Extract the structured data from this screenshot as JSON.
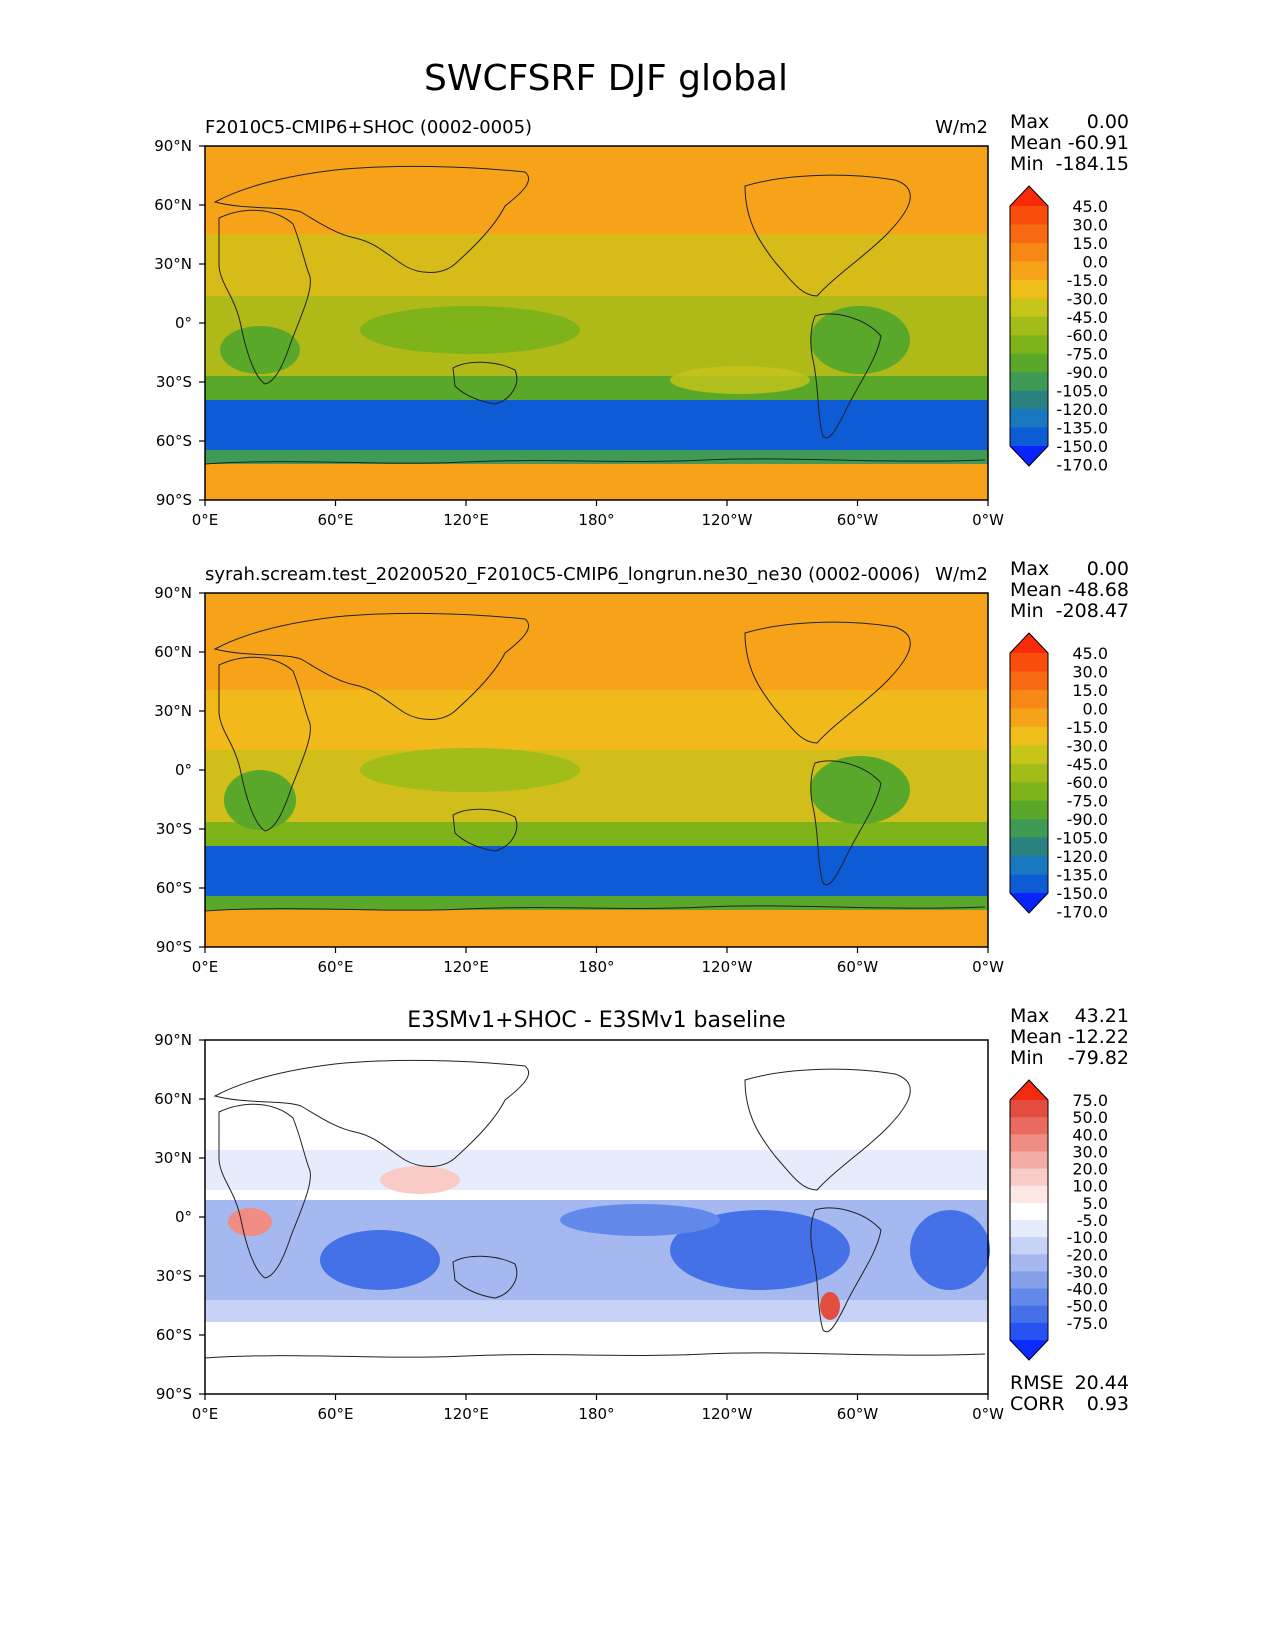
{
  "figure": {
    "title": "SWCFSRF DJF global"
  },
  "colors": {
    "model_levels_colors": [
      "#0a24ff",
      "#0d5cd6",
      "#1778bf",
      "#2b8080",
      "#3f9a54",
      "#5aa829",
      "#7fb31a",
      "#a2bd17",
      "#c7c41a",
      "#efbe1a",
      "#f7a31a",
      "#f88716",
      "#f86a12",
      "#f84d0d",
      "#f82a08"
    ],
    "diff_levels_colors": [
      "#0a2aff",
      "#2552f0",
      "#4470e8",
      "#6288ea",
      "#859fe8",
      "#a6b8f0",
      "#c6d3f6",
      "#e6ecfb",
      "#ffffff",
      "#fde7e5",
      "#f9cbc7",
      "#f4aca6",
      "#ef8d85",
      "#ea6a60",
      "#e24d3f",
      "#f22a10"
    ]
  },
  "chart_data": [
    {
      "type": "heatmap",
      "panel": "test",
      "title_left": "F2010C5-CMIP6+SHOC (0002-0005)",
      "title_right": "W/m2",
      "stats": {
        "max_label": "Max",
        "max": "0.00",
        "mean_label": "Mean",
        "mean": "-60.91",
        "min_label": "Min",
        "min": "-184.15"
      },
      "x_ticks": [
        "0°E",
        "60°E",
        "120°E",
        "180°",
        "120°W",
        "60°W",
        "0°W"
      ],
      "y_ticks": [
        "90°N",
        "60°N",
        "30°N",
        "0°",
        "30°S",
        "60°S",
        "90°S"
      ],
      "colorbar_labels": [
        "45.0",
        "30.0",
        "15.0",
        "0.0",
        "-15.0",
        "-30.0",
        "-45.0",
        "-60.0",
        "-75.0",
        "-90.0",
        "-105.0",
        "-120.0",
        "-135.0",
        "-150.0",
        "-170.0"
      ],
      "xlim": [
        0,
        360
      ],
      "ylim": [
        -90,
        90
      ]
    },
    {
      "type": "heatmap",
      "panel": "reference",
      "title_left": "syrah.scream.test_20200520_F2010C5-CMIP6_longrun.ne30_ne30 (0002-0006)",
      "title_right": "W/m2",
      "stats": {
        "max_label": "Max",
        "max": "0.00",
        "mean_label": "Mean",
        "mean": "-48.68",
        "min_label": "Min",
        "min": "-208.47"
      },
      "x_ticks": [
        "0°E",
        "60°E",
        "120°E",
        "180°",
        "120°W",
        "60°W",
        "0°W"
      ],
      "y_ticks": [
        "90°N",
        "60°N",
        "30°N",
        "0°",
        "30°S",
        "60°S",
        "90°S"
      ],
      "colorbar_labels": [
        "45.0",
        "30.0",
        "15.0",
        "0.0",
        "-15.0",
        "-30.0",
        "-45.0",
        "-60.0",
        "-75.0",
        "-90.0",
        "-105.0",
        "-120.0",
        "-135.0",
        "-150.0",
        "-170.0"
      ],
      "xlim": [
        0,
        360
      ],
      "ylim": [
        -90,
        90
      ]
    },
    {
      "type": "heatmap",
      "panel": "difference",
      "title_center": "E3SMv1+SHOC - E3SMv1 baseline",
      "stats": {
        "max_label": "Max",
        "max": "43.21",
        "mean_label": "Mean",
        "mean": "-12.22",
        "min_label": "Min",
        "min": "-79.82"
      },
      "metrics": {
        "rmse_label": "RMSE",
        "rmse": "20.44",
        "corr_label": "CORR",
        "corr": "0.93"
      },
      "x_ticks": [
        "0°E",
        "60°E",
        "120°E",
        "180°",
        "120°W",
        "60°W",
        "0°W"
      ],
      "y_ticks": [
        "90°N",
        "60°N",
        "30°N",
        "0°",
        "30°S",
        "60°S",
        "90°S"
      ],
      "colorbar_labels": [
        "75.0",
        "50.0",
        "40.0",
        "30.0",
        "20.0",
        "10.0",
        "5.0",
        "-5.0",
        "-10.0",
        "-20.0",
        "-30.0",
        "-40.0",
        "-50.0",
        "-75.0"
      ],
      "xlim": [
        0,
        360
      ],
      "ylim": [
        -90,
        90
      ]
    }
  ]
}
